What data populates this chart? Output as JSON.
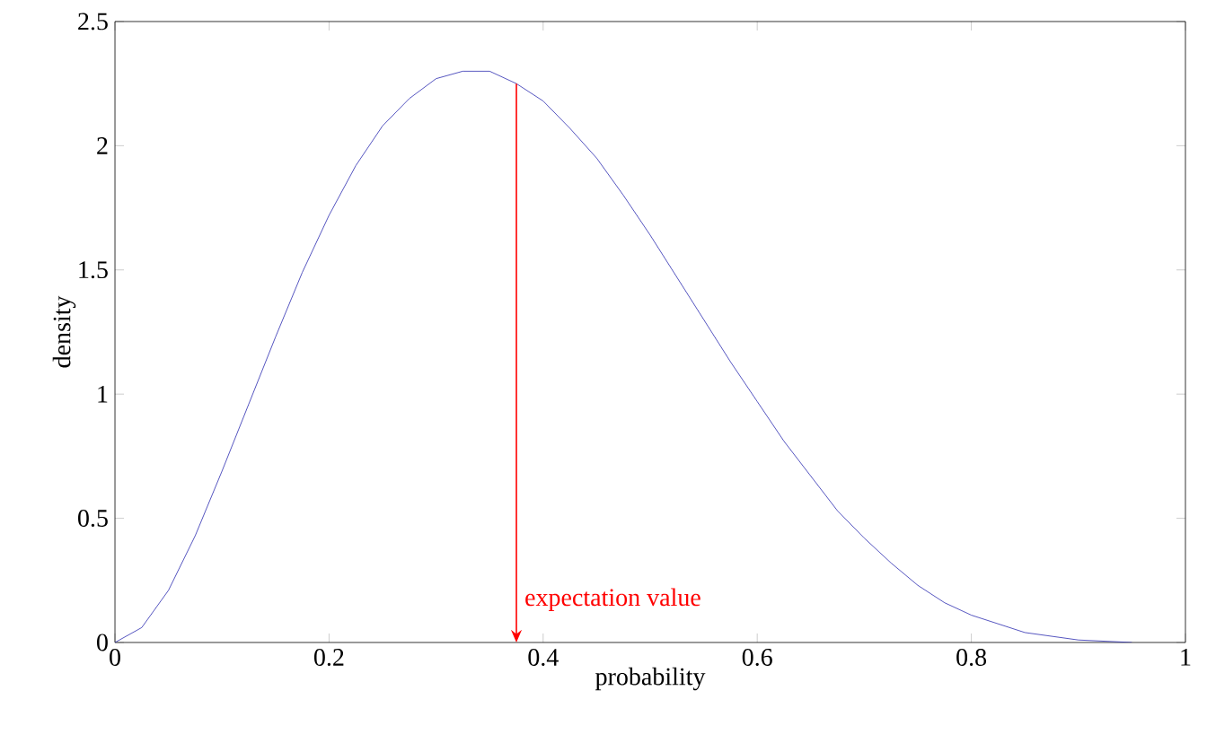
{
  "chart_data": {
    "type": "line",
    "xlabel": "probability",
    "ylabel": "density",
    "x": [
      0,
      0.025,
      0.05,
      0.075,
      0.1,
      0.125,
      0.15,
      0.175,
      0.2,
      0.225,
      0.25,
      0.275,
      0.3,
      0.325,
      0.35,
      0.375,
      0.4,
      0.425,
      0.45,
      0.475,
      0.5,
      0.525,
      0.55,
      0.575,
      0.6,
      0.625,
      0.65,
      0.675,
      0.7,
      0.725,
      0.75,
      0.775,
      0.8,
      0.85,
      0.9,
      0.95
    ],
    "series": [
      {
        "color": "#2b2bb0",
        "values": [
          0,
          0.06,
          0.21,
          0.43,
          0.69,
          0.96,
          1.23,
          1.49,
          1.72,
          1.92,
          2.08,
          2.19,
          2.27,
          2.3,
          2.3,
          2.25,
          2.18,
          2.07,
          1.95,
          1.8,
          1.64,
          1.47,
          1.3,
          1.13,
          0.97,
          0.81,
          0.67,
          0.53,
          0.42,
          0.32,
          0.23,
          0.16,
          0.11,
          0.04,
          0.01,
          0
        ]
      }
    ],
    "xlim": [
      0,
      1
    ],
    "ylim": [
      0,
      2.5
    ],
    "xticks": [
      0,
      {
        "value": 0.2,
        "label": "0.2"
      },
      {
        "value": 0.4,
        "label": "0.4"
      },
      {
        "value": 0.6,
        "label": "0.6"
      },
      {
        "value": 0.8,
        "label": "0.8"
      },
      1
    ],
    "yticks": [
      0,
      {
        "value": 0.5,
        "label": "0.5"
      },
      1,
      {
        "value": 1.5,
        "label": "1.5"
      },
      2,
      {
        "value": 2.5,
        "label": "2.5"
      }
    ],
    "annotations": [
      {
        "text": "expectation value",
        "x": 0.375,
        "y": 2.25
      }
    ]
  }
}
